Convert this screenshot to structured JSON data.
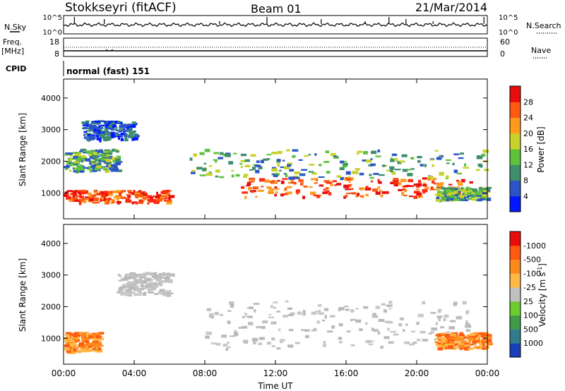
{
  "header": {
    "title": "Stokkseyri (fitACF)",
    "beam": "Beam 01",
    "date": "21/Mar/2014"
  },
  "noise_panel": {
    "left_label": "N.Sky",
    "right_label": "N.Search",
    "left_ticks": [
      "10^5",
      "10^0"
    ],
    "right_ticks": [
      "10^5",
      "10^0"
    ]
  },
  "freq_panel": {
    "left_label_line1": "Freq.",
    "left_label_line2": "[MHz]",
    "right_label": "Nave",
    "left_ticks": [
      "18",
      "8"
    ],
    "right_ticks": [
      "60",
      "0"
    ]
  },
  "cpid": {
    "label": "CPID",
    "value": "normal (fast) 151"
  },
  "chart_data": [
    {
      "type": "heatmap",
      "name": "power",
      "ylabel": "Slant Range [km]",
      "ylim": [
        180,
        4600
      ],
      "yticks": [
        1000,
        2000,
        3000,
        4000
      ],
      "colorbar": {
        "label": "Power [dB]",
        "ticks": [
          4,
          8,
          12,
          16,
          20,
          24,
          28
        ],
        "colors": [
          "#0018ff",
          "#2a55c8",
          "#3f8f6c",
          "#5cc23a",
          "#c8d22a",
          "#ff9a1c",
          "#ff5a10",
          "#e80c0c"
        ]
      },
      "bands": [
        {
          "x": [
            0,
            6
          ],
          "y": [
            700,
            1100
          ],
          "level": "high"
        },
        {
          "x": [
            10,
            23
          ],
          "y": [
            900,
            1500
          ],
          "level": "high"
        },
        {
          "x": [
            7,
            24
          ],
          "y": [
            1500,
            2400
          ],
          "level": "medium"
        },
        {
          "x": [
            0,
            3
          ],
          "y": [
            1700,
            2400
          ],
          "level": "medium"
        },
        {
          "x": [
            1,
            4
          ],
          "y": [
            2700,
            3300
          ],
          "level": "low"
        },
        {
          "x": [
            21,
            24
          ],
          "y": [
            800,
            1200
          ],
          "level": "medium"
        }
      ]
    },
    {
      "type": "heatmap",
      "name": "velocity",
      "ylabel": "Slant Range [km]",
      "xlabel": "Time UT",
      "ylim": [
        180,
        4600
      ],
      "yticks": [
        1000,
        2000,
        3000,
        4000
      ],
      "xticks": [
        "00:00",
        "04:00",
        "08:00",
        "12:00",
        "16:00",
        "20:00",
        "00:00"
      ],
      "colorbar": {
        "label": "Velocity [m s",
        "label_sup": "-1",
        "label_close": "]",
        "ticks": [
          "1000",
          "500",
          "100",
          "25",
          "-25",
          "-100",
          "-500",
          "-1000"
        ],
        "colors": [
          "#1a3fb8",
          "#2f7d8c",
          "#3f9b4a",
          "#6ccc2e",
          "#c0c0c0",
          "#ffb845",
          "#ff8a1c",
          "#ff5a10",
          "#e80c0c"
        ]
      },
      "bands": [
        {
          "x": [
            0,
            2
          ],
          "y": [
            600,
            1200
          ],
          "level": "negative"
        },
        {
          "x": [
            8,
            23
          ],
          "y": [
            700,
            2200
          ],
          "level": "zero"
        },
        {
          "x": [
            21,
            24
          ],
          "y": [
            700,
            1200
          ],
          "level": "negative"
        },
        {
          "x": [
            3,
            6
          ],
          "y": [
            2400,
            3100
          ],
          "level": "zero"
        }
      ]
    }
  ]
}
